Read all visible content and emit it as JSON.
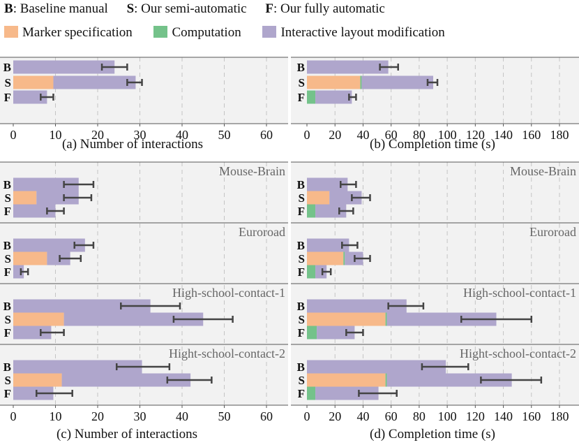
{
  "legend": {
    "codes": [
      {
        "letter": "B",
        "text": ": Baseline manual"
      },
      {
        "letter": "S",
        "text": ": Our semi-automatic"
      },
      {
        "letter": "F",
        "text": ": Our fully automatic"
      }
    ],
    "components": [
      {
        "label": "Marker specification",
        "color": "#f7b98a"
      },
      {
        "label": "Computation",
        "color": "#74c28a"
      },
      {
        "label": "Interactive layout modification",
        "color": "#afa6cc"
      }
    ]
  },
  "colors": {
    "marker": "#f7b98a",
    "computation": "#74c28a",
    "interactive": "#afa6cc",
    "panel_bg": "#f2f2f2",
    "error": "#444444",
    "grid": "#c4c4c4"
  },
  "chart_data": [
    {
      "id": "a",
      "type": "bar",
      "orientation": "horizontal",
      "stacked": true,
      "title": "(a) Number of interactions",
      "xlim": [
        0,
        60
      ],
      "xticks": [
        0,
        10,
        20,
        30,
        40,
        50,
        60
      ],
      "categories": [
        "B",
        "S",
        "F"
      ],
      "groups": [
        {
          "name": "",
          "rows": [
            {
              "label": "B",
              "segments": [
                0,
                0,
                24
              ],
              "error": [
                21,
                27
              ]
            },
            {
              "label": "S",
              "segments": [
                9.5,
                0,
                19.5
              ],
              "error": [
                27,
                30.5
              ]
            },
            {
              "label": "F",
              "segments": [
                0,
                0,
                8
              ],
              "error": [
                6.5,
                9.5
              ]
            }
          ]
        }
      ]
    },
    {
      "id": "b",
      "type": "bar",
      "orientation": "horizontal",
      "stacked": true,
      "title": "(b) Completion time (s)",
      "xlim": [
        0,
        180
      ],
      "xticks": [
        0,
        20,
        40,
        60,
        80,
        100,
        120,
        140,
        160,
        180
      ],
      "categories": [
        "B",
        "S",
        "F"
      ],
      "groups": [
        {
          "name": "",
          "rows": [
            {
              "label": "B",
              "segments": [
                0,
                0,
                58
              ],
              "error": [
                52,
                65
              ]
            },
            {
              "label": "S",
              "segments": [
                38,
                1,
                51
              ],
              "error": [
                86,
                93
              ]
            },
            {
              "label": "F",
              "segments": [
                0,
                6,
                26
              ],
              "error": [
                30,
                35
              ]
            }
          ]
        }
      ]
    },
    {
      "id": "c",
      "type": "bar",
      "orientation": "horizontal",
      "stacked": true,
      "title": "(c) Number of interactions",
      "xlim": [
        0,
        60
      ],
      "xticks": [
        0,
        10,
        20,
        30,
        40,
        50,
        60
      ],
      "categories": [
        "B",
        "S",
        "F"
      ],
      "groups": [
        {
          "name": "Mouse-Brain",
          "rows": [
            {
              "label": "B",
              "segments": [
                0,
                0,
                15.5
              ],
              "error": [
                12,
                19
              ]
            },
            {
              "label": "S",
              "segments": [
                5.5,
                0,
                10
              ],
              "error": [
                12,
                18.5
              ]
            },
            {
              "label": "F",
              "segments": [
                0,
                0,
                10
              ],
              "error": [
                8,
                12
              ]
            }
          ]
        },
        {
          "name": "Euroroad",
          "rows": [
            {
              "label": "B",
              "segments": [
                0,
                0,
                17
              ],
              "error": [
                14.5,
                19
              ]
            },
            {
              "label": "S",
              "segments": [
                8,
                0,
                5.5
              ],
              "error": [
                11,
                16
              ]
            },
            {
              "label": "F",
              "segments": [
                0,
                0,
                2.5
              ],
              "error": [
                1.8,
                3.5
              ]
            }
          ]
        },
        {
          "name": "High-school-contact-1",
          "rows": [
            {
              "label": "B",
              "segments": [
                0,
                0,
                32.5
              ],
              "error": [
                25.5,
                39.5
              ]
            },
            {
              "label": "S",
              "segments": [
                12,
                0,
                33
              ],
              "error": [
                38,
                52
              ]
            },
            {
              "label": "F",
              "segments": [
                0,
                0,
                9
              ],
              "error": [
                6.5,
                12
              ]
            }
          ]
        },
        {
          "name": "Hight-school-contact-2",
          "rows": [
            {
              "label": "B",
              "segments": [
                0,
                0,
                30.5
              ],
              "error": [
                24.5,
                37
              ]
            },
            {
              "label": "S",
              "segments": [
                11.5,
                0,
                30.5
              ],
              "error": [
                36.5,
                47
              ]
            },
            {
              "label": "F",
              "segments": [
                0,
                0,
                9.5
              ],
              "error": [
                5.5,
                14
              ]
            }
          ]
        }
      ]
    },
    {
      "id": "d",
      "type": "bar",
      "orientation": "horizontal",
      "stacked": true,
      "title": "(d) Completion time (s)",
      "xlim": [
        0,
        180
      ],
      "xticks": [
        0,
        20,
        40,
        60,
        80,
        100,
        120,
        140,
        160,
        180
      ],
      "categories": [
        "B",
        "S",
        "F"
      ],
      "groups": [
        {
          "name": "Mouse-Brain",
          "rows": [
            {
              "label": "B",
              "segments": [
                0,
                0,
                29
              ],
              "error": [
                24,
                35
              ]
            },
            {
              "label": "S",
              "segments": [
                16,
                0,
                23
              ],
              "error": [
                32,
                45
              ]
            },
            {
              "label": "F",
              "segments": [
                0,
                6,
                22
              ],
              "error": [
                23,
                33
              ]
            }
          ]
        },
        {
          "name": "Euroroad",
          "rows": [
            {
              "label": "B",
              "segments": [
                0,
                0,
                30
              ],
              "error": [
                25,
                36
              ]
            },
            {
              "label": "S",
              "segments": [
                26,
                1,
                13
              ],
              "error": [
                34,
                45
              ]
            },
            {
              "label": "F",
              "segments": [
                0,
                6,
                8
              ],
              "error": [
                11,
                17
              ]
            }
          ]
        },
        {
          "name": "High-school-contact-1",
          "rows": [
            {
              "label": "B",
              "segments": [
                0,
                0,
                71
              ],
              "error": [
                58,
                83
              ]
            },
            {
              "label": "S",
              "segments": [
                56,
                1,
                78
              ],
              "error": [
                110,
                160
              ]
            },
            {
              "label": "F",
              "segments": [
                0,
                7,
                27
              ],
              "error": [
                28,
                40
              ]
            }
          ]
        },
        {
          "name": "Hight-school-contact-2",
          "rows": [
            {
              "label": "B",
              "segments": [
                0,
                0,
                99
              ],
              "error": [
                82,
                115
              ]
            },
            {
              "label": "S",
              "segments": [
                56,
                1,
                89
              ],
              "error": [
                124,
                167
              ]
            },
            {
              "label": "F",
              "segments": [
                0,
                6,
                45
              ],
              "error": [
                37,
                64
              ]
            }
          ]
        }
      ]
    }
  ]
}
